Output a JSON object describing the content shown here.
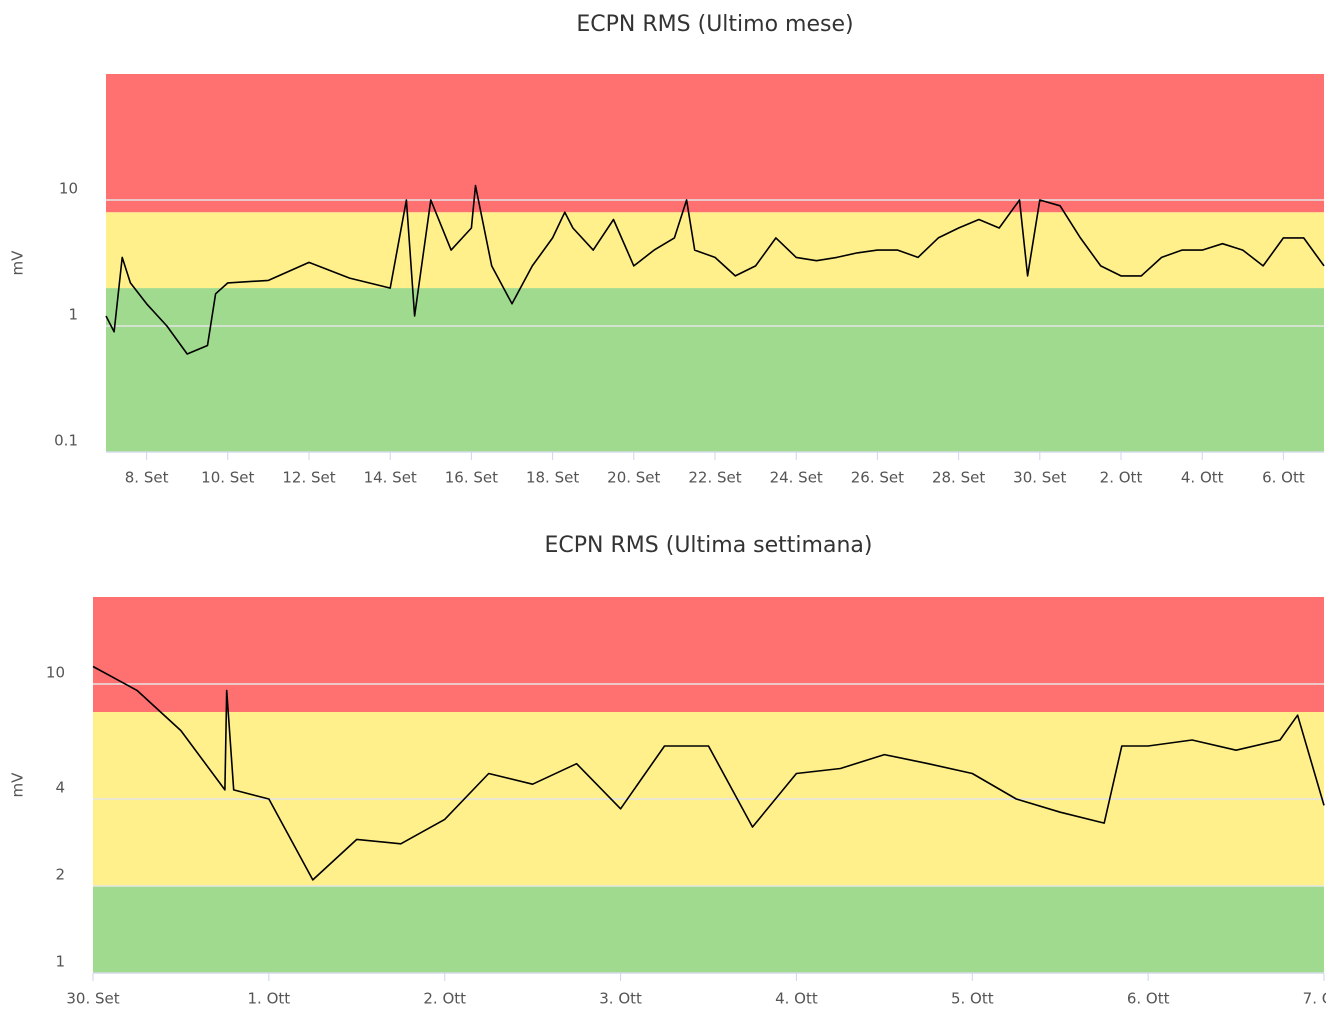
{
  "chart_data": [
    {
      "type": "line",
      "title": "ECPN RMS (Ultimo mese)",
      "y_label": "mV",
      "log_y": true,
      "ylim": [
        0.1,
        100
      ],
      "yticks": [
        0.1,
        1,
        10
      ],
      "xlim": [
        7,
        37
      ],
      "xticks": [
        {
          "value": 8,
          "label": "8. Set"
        },
        {
          "value": 10,
          "label": "10. Set"
        },
        {
          "value": 12,
          "label": "12. Set"
        },
        {
          "value": 14,
          "label": "14. Set"
        },
        {
          "value": 16,
          "label": "16. Set"
        },
        {
          "value": 18,
          "label": "18. Set"
        },
        {
          "value": 20,
          "label": "20. Set"
        },
        {
          "value": 22,
          "label": "22. Set"
        },
        {
          "value": 24,
          "label": "24. Set"
        },
        {
          "value": 26,
          "label": "26. Set"
        },
        {
          "value": 28,
          "label": "28. Set"
        },
        {
          "value": 30,
          "label": "30. Set"
        },
        {
          "value": 32,
          "label": "2. Ott"
        },
        {
          "value": 34,
          "label": "4. Ott"
        },
        {
          "value": 36,
          "label": "6. Ott"
        }
      ],
      "bands": [
        {
          "from": 0.1,
          "to": 2,
          "color": "#a0da8e"
        },
        {
          "from": 2,
          "to": 8,
          "color": "#fff08c"
        },
        {
          "from": 8,
          "to": 100,
          "color": "#ff7070"
        }
      ],
      "x": [
        7,
        7.2,
        7.4,
        7.6,
        8,
        8.5,
        9,
        9.5,
        9.7,
        10,
        11,
        12,
        13,
        14,
        14.4,
        14.6,
        15,
        15.5,
        16,
        16.1,
        16.5,
        17,
        17.5,
        18,
        18.3,
        18.5,
        19,
        19.5,
        20,
        20.5,
        21,
        21.3,
        21.5,
        22,
        22.5,
        23,
        23.5,
        24,
        24.5,
        25,
        25.5,
        26,
        26.5,
        27,
        27.5,
        28,
        28.5,
        29,
        29.5,
        29.7,
        30,
        30.5,
        31,
        31.5,
        32,
        32.5,
        33,
        33.5,
        34,
        34.5,
        35,
        35.5,
        36,
        36.5,
        37
      ],
      "series": [
        {
          "color": "#000000",
          "values": [
            1.2,
            0.9,
            3.5,
            2.2,
            1.5,
            1.0,
            0.6,
            0.7,
            1.8,
            2.2,
            2.3,
            3.2,
            2.4,
            2.0,
            10,
            1.2,
            10,
            4,
            6,
            13,
            3,
            1.5,
            3,
            5,
            8,
            6,
            4,
            7,
            3,
            4,
            5,
            10,
            4,
            3.5,
            2.5,
            3,
            5,
            3.5,
            3.3,
            3.5,
            3.8,
            4,
            4,
            3.5,
            5,
            6,
            7,
            6,
            10,
            2.5,
            10,
            9,
            5,
            3,
            2.5,
            2.5,
            3.5,
            4,
            4,
            4.5,
            4,
            3,
            5,
            5,
            3
          ]
        }
      ]
    },
    {
      "type": "line",
      "title": "ECPN RMS (Ultima settimana)",
      "y_label": "mV",
      "log_y": true,
      "ylim": [
        1,
        20
      ],
      "yticks": [
        1,
        2,
        4,
        10
      ],
      "xlim": [
        30,
        37
      ],
      "xticks": [
        {
          "value": 30,
          "label": "30. Set"
        },
        {
          "value": 31,
          "label": "1. Ott"
        },
        {
          "value": 32,
          "label": "2. Ott"
        },
        {
          "value": 33,
          "label": "3. Ott"
        },
        {
          "value": 34,
          "label": "4. Ott"
        },
        {
          "value": 35,
          "label": "5. Ott"
        },
        {
          "value": 36,
          "label": "6. Ott"
        },
        {
          "value": 37,
          "label": "7. Ott"
        }
      ],
      "bands": [
        {
          "from": 1,
          "to": 2,
          "color": "#a0da8e"
        },
        {
          "from": 2,
          "to": 8,
          "color": "#fff08c"
        },
        {
          "from": 8,
          "to": 20,
          "color": "#ff7070"
        }
      ],
      "x": [
        30,
        30.25,
        30.5,
        30.75,
        30.76,
        30.8,
        31,
        31.25,
        31.5,
        31.75,
        32,
        32.25,
        32.5,
        32.75,
        33,
        33.25,
        33.5,
        33.75,
        34,
        34.25,
        34.5,
        34.75,
        35,
        35.25,
        35.5,
        35.75,
        35.85,
        36,
        36.25,
        36.5,
        36.75,
        36.85,
        37
      ],
      "series": [
        {
          "color": "#000000",
          "values": [
            11.5,
            9.5,
            6.9,
            4.3,
            9.5,
            4.3,
            4,
            2.1,
            2.9,
            2.8,
            3.4,
            4.9,
            4.5,
            5.3,
            3.7,
            6.1,
            6.1,
            3.2,
            4.9,
            5.1,
            5.7,
            5.3,
            4.9,
            4.0,
            3.6,
            3.3,
            6.1,
            6.1,
            6.4,
            5.9,
            6.4,
            7.8,
            3.8
          ]
        }
      ]
    }
  ]
}
